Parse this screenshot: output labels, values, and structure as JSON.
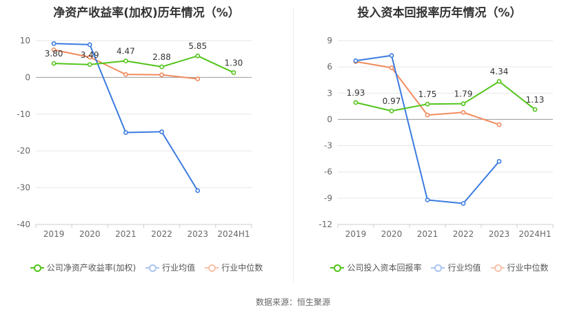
{
  "colors": {
    "company": "#52c41a",
    "industry_avg": "#3a7be0",
    "industry_median": "#f08a5d"
  },
  "legend_labels": {
    "left": [
      "公司净资产收益率(加权)",
      "行业均值",
      "行业中位数"
    ],
    "right": [
      "公司投入资本回报率",
      "行业均值",
      "行业中位数"
    ]
  },
  "source": "数据来源：恒生聚源",
  "chart_data": [
    {
      "type": "line",
      "title": "净资产收益率(加权)历年情况（%）",
      "categories": [
        "2019",
        "2020",
        "2021",
        "2022",
        "2023",
        "2024H1"
      ],
      "ylim": [
        -40,
        10
      ],
      "yticks": [
        10,
        0,
        -10,
        -20,
        -30,
        -40
      ],
      "grid": true,
      "legend_position": "bottom",
      "series": [
        {
          "name": "公司净资产收益率(加权)",
          "values": [
            3.8,
            3.49,
            4.47,
            2.88,
            5.85,
            1.3
          ],
          "labels": [
            "3.80",
            "3.49",
            "4.47",
            "2.88",
            "5.85",
            "1.30"
          ]
        },
        {
          "name": "行业均值",
          "values": [
            9.2,
            8.9,
            -15.0,
            -14.8,
            -30.8,
            null
          ]
        },
        {
          "name": "行业中位数",
          "values": [
            7.5,
            5.5,
            0.8,
            0.7,
            -0.4,
            null
          ]
        }
      ]
    },
    {
      "type": "line",
      "title": "投入资本回报率历年情况（%）",
      "categories": [
        "2019",
        "2020",
        "2021",
        "2022",
        "2023",
        "2024H1"
      ],
      "ylim": [
        -12,
        9
      ],
      "yticks": [
        9,
        6,
        3,
        0,
        -3,
        -6,
        -9,
        -12
      ],
      "grid": true,
      "legend_position": "bottom",
      "series": [
        {
          "name": "公司投入资本回报率",
          "values": [
            1.93,
            0.97,
            1.75,
            1.79,
            4.34,
            1.13
          ],
          "labels": [
            "1.93",
            "0.97",
            "1.75",
            "1.79",
            "4.34",
            "1.13"
          ]
        },
        {
          "name": "行业均值",
          "values": [
            6.7,
            7.3,
            -9.2,
            -9.6,
            -4.8,
            null
          ]
        },
        {
          "name": "行业中位数",
          "values": [
            6.6,
            5.9,
            0.5,
            0.8,
            -0.6,
            null
          ]
        }
      ]
    }
  ]
}
